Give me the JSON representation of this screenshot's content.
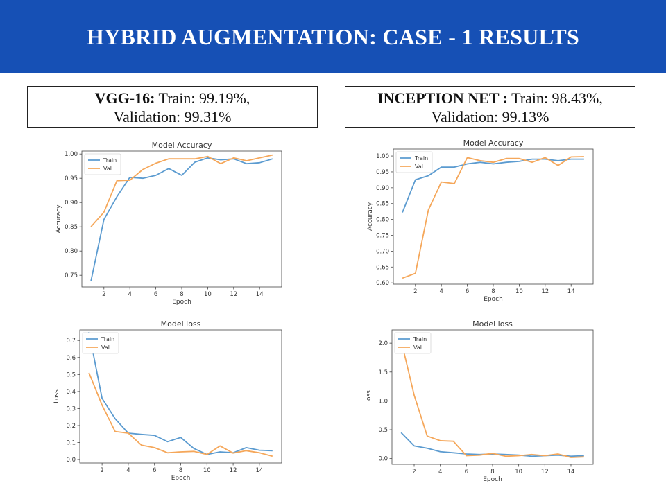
{
  "header": {
    "title": "HYBRID AUGMENTATION: CASE - 1 RESULTS"
  },
  "captions": {
    "left": {
      "model": "VGG-16:",
      "train": " Train: 99.19%,",
      "validation": "Validation: 99.31%"
    },
    "right": {
      "model": "INCEPTION NET :",
      "train": " Train: 98.43%,",
      "validation": "Validation: 99.13%"
    }
  },
  "chart_data": [
    {
      "id": "vgg-accuracy",
      "type": "line",
      "title": "Model Accuracy",
      "xlabel": "Epoch",
      "ylabel": "Accuracy",
      "xlim": [
        0.3,
        15.7
      ],
      "ylim": [
        0.726,
        1.006
      ],
      "xticks": [
        2,
        4,
        6,
        8,
        10,
        12,
        14
      ],
      "yticks": [
        0.75,
        0.8,
        0.85,
        0.9,
        0.95,
        1.0
      ],
      "ytick_labels": [
        "0.75",
        "0.80",
        "0.85",
        "0.90",
        "0.95",
        "1.00"
      ],
      "legend": "top-left",
      "grid": false,
      "x": [
        1,
        2,
        3,
        4,
        5,
        6,
        7,
        8,
        9,
        10,
        11,
        12,
        13,
        14,
        15
      ],
      "series": [
        {
          "name": "Train",
          "color": "#5b9bd0",
          "values": [
            0.738,
            0.865,
            0.912,
            0.952,
            0.95,
            0.956,
            0.97,
            0.956,
            0.983,
            0.992,
            0.988,
            0.99,
            0.98,
            0.982,
            0.99
          ]
        },
        {
          "name": "Val",
          "color": "#f5a75a",
          "values": [
            0.85,
            0.88,
            0.945,
            0.946,
            0.968,
            0.981,
            0.99,
            0.99,
            0.99,
            0.995,
            0.98,
            0.992,
            0.986,
            0.992,
            0.998
          ]
        }
      ]
    },
    {
      "id": "inception-accuracy",
      "type": "line",
      "title": "Model Accuracy",
      "xlabel": "Epoch",
      "ylabel": "Accuracy",
      "xlim": [
        0.3,
        15.7
      ],
      "ylim": [
        0.596,
        1.022
      ],
      "xticks": [
        2,
        4,
        6,
        8,
        10,
        12,
        14
      ],
      "yticks": [
        0.6,
        0.65,
        0.7,
        0.75,
        0.8,
        0.85,
        0.9,
        0.95,
        1.0
      ],
      "ytick_labels": [
        "0.60",
        "0.65",
        "0.70",
        "0.75",
        "0.80",
        "0.85",
        "0.90",
        "0.95",
        "1.00"
      ],
      "legend": "top-left",
      "grid": false,
      "x": [
        1,
        2,
        3,
        4,
        5,
        6,
        7,
        8,
        9,
        10,
        11,
        12,
        13,
        14,
        15
      ],
      "series": [
        {
          "name": "Train",
          "color": "#5b9bd0",
          "values": [
            0.822,
            0.925,
            0.938,
            0.965,
            0.965,
            0.975,
            0.98,
            0.975,
            0.98,
            0.983,
            0.99,
            0.99,
            0.985,
            0.99,
            0.99
          ]
        },
        {
          "name": "Val",
          "color": "#f5a75a",
          "values": [
            0.615,
            0.63,
            0.83,
            0.918,
            0.913,
            0.995,
            0.985,
            0.98,
            0.992,
            0.992,
            0.98,
            0.995,
            0.97,
            0.997,
            0.998
          ]
        }
      ]
    },
    {
      "id": "vgg-loss",
      "type": "line",
      "title": "Model loss",
      "xlabel": "Epoch",
      "ylabel": "Loss",
      "xlim": [
        0.3,
        15.7
      ],
      "ylim": [
        -0.02,
        0.762
      ],
      "xticks": [
        2,
        4,
        6,
        8,
        10,
        12,
        14
      ],
      "yticks": [
        0.0,
        0.1,
        0.2,
        0.3,
        0.4,
        0.5,
        0.6,
        0.7
      ],
      "ytick_labels": [
        "0.0",
        "0.1",
        "0.2",
        "0.3",
        "0.4",
        "0.5",
        "0.6",
        "0.7"
      ],
      "legend": "top-left",
      "grid": false,
      "x": [
        1,
        2,
        3,
        4,
        5,
        6,
        7,
        8,
        9,
        10,
        11,
        12,
        13,
        14,
        15
      ],
      "series": [
        {
          "name": "Train",
          "color": "#5b9bd0",
          "values": [
            0.75,
            0.36,
            0.24,
            0.155,
            0.148,
            0.142,
            0.105,
            0.13,
            0.065,
            0.03,
            0.045,
            0.04,
            0.07,
            0.055,
            0.052
          ]
        },
        {
          "name": "Val",
          "color": "#f5a75a",
          "values": [
            0.51,
            0.32,
            0.165,
            0.155,
            0.085,
            0.07,
            0.04,
            0.045,
            0.048,
            0.03,
            0.08,
            0.038,
            0.052,
            0.04,
            0.02
          ]
        }
      ]
    },
    {
      "id": "inception-loss",
      "type": "line",
      "title": "Model loss",
      "xlabel": "Epoch",
      "ylabel": "Loss",
      "xlim": [
        0.3,
        15.7
      ],
      "ylim": [
        -0.1,
        2.23
      ],
      "xticks": [
        2,
        4,
        6,
        8,
        10,
        12,
        14
      ],
      "yticks": [
        0.0,
        0.5,
        1.0,
        1.5,
        2.0
      ],
      "ytick_labels": [
        "0.0",
        "0.5",
        "1.0",
        "1.5",
        "2.0"
      ],
      "legend": "top-left",
      "grid": false,
      "x": [
        1,
        2,
        3,
        4,
        5,
        6,
        7,
        8,
        9,
        10,
        11,
        12,
        13,
        14,
        15
      ],
      "series": [
        {
          "name": "Train",
          "color": "#5b9bd0",
          "values": [
            0.45,
            0.22,
            0.18,
            0.12,
            0.1,
            0.08,
            0.07,
            0.08,
            0.07,
            0.06,
            0.04,
            0.05,
            0.06,
            0.04,
            0.05
          ]
        },
        {
          "name": "Val",
          "color": "#f5a75a",
          "values": [
            2.05,
            1.1,
            0.39,
            0.31,
            0.3,
            0.05,
            0.06,
            0.09,
            0.04,
            0.05,
            0.07,
            0.05,
            0.08,
            0.02,
            0.03
          ]
        }
      ]
    }
  ]
}
